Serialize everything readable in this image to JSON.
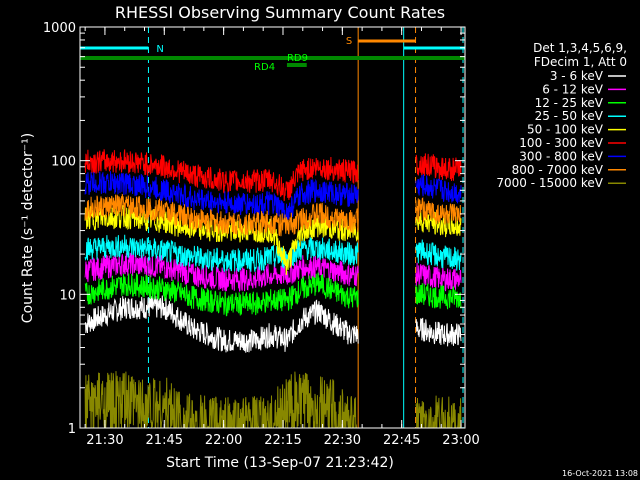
{
  "chart_data": {
    "type": "line",
    "title": "RHESSI Observing Summary Count Rates",
    "xlabel": "Start Time (13-Sep-07 21:23:42)",
    "ylabel": "Count Rate (s⁻¹ detector⁻¹)",
    "y_scale": "log",
    "ylim": [
      1,
      1000
    ],
    "xlim": [
      "21:23:42",
      "23:01:00"
    ],
    "x_ticks": [
      "21:30",
      "21:45",
      "22:00",
      "22:15",
      "22:30",
      "22:45",
      "23:00"
    ],
    "y_ticks": [
      "1",
      "10",
      "100",
      "1000"
    ],
    "footer_date": "16-Oct-2021 13:08",
    "legend": {
      "header": [
        "Det 1,3,4,5,6,9,",
        "FDecim 1, Att 0"
      ],
      "position": "right"
    },
    "series": [
      {
        "name": "3 - 6 keV",
        "color": "#ffffff",
        "x": [
          "21:25",
          "21:35",
          "21:45",
          "21:52",
          "22:00",
          "22:08",
          "22:12",
          "22:16",
          "22:20",
          "22:24",
          "22:28",
          "22:32",
          "22:50",
          "22:55",
          "23:00"
        ],
        "y": [
          6,
          8,
          8,
          5.5,
          4.5,
          4.5,
          5,
          4.5,
          6.5,
          7.5,
          6,
          5,
          5.5,
          5,
          5
        ]
      },
      {
        "name": "6 - 12 keV",
        "color": "#ff00ff",
        "x": [
          "21:25",
          "21:35",
          "21:45",
          "21:52",
          "22:00",
          "22:08",
          "22:12",
          "22:16",
          "22:20",
          "22:24",
          "22:28",
          "22:32",
          "22:50",
          "22:55",
          "23:00"
        ],
        "y": [
          15,
          17,
          16,
          14,
          13,
          13,
          14,
          14,
          16,
          16,
          15,
          14,
          14,
          13,
          13
        ]
      },
      {
        "name": "12 - 25 keV",
        "color": "#00ff00",
        "x": [
          "21:25",
          "21:35",
          "21:45",
          "21:52",
          "22:00",
          "22:08",
          "22:12",
          "22:16",
          "22:20",
          "22:24",
          "22:28",
          "22:32",
          "22:50",
          "22:55",
          "23:00"
        ],
        "y": [
          10,
          12,
          11,
          9.5,
          8.5,
          8.5,
          9,
          9,
          11,
          12,
          10.5,
          9.5,
          10,
          9.5,
          9.5
        ]
      },
      {
        "name": "25 - 50 keV",
        "color": "#00ffff",
        "x": [
          "21:25",
          "21:35",
          "21:45",
          "21:52",
          "22:00",
          "22:08",
          "22:12",
          "22:16",
          "22:20",
          "22:24",
          "22:28",
          "22:32",
          "22:50",
          "22:55",
          "23:00"
        ],
        "y": [
          22,
          23,
          21,
          19,
          18,
          18,
          19,
          19,
          22,
          22,
          21,
          20,
          21,
          19,
          18
        ]
      },
      {
        "name": "50 - 100 keV",
        "color": "#ffff00",
        "x": [
          "21:25",
          "21:35",
          "21:45",
          "21:52",
          "22:00",
          "22:08",
          "22:12",
          "22:16",
          "22:20",
          "22:24",
          "22:28",
          "22:32",
          "22:50",
          "22:55",
          "23:00"
        ],
        "y": [
          37,
          38,
          35,
          31,
          30,
          30,
          30,
          16,
          30,
          33,
          31,
          30,
          36,
          33,
          32
        ]
      },
      {
        "name": "100 - 300 keV",
        "color": "#ff0000",
        "x": [
          "21:25",
          "21:35",
          "21:45",
          "21:52",
          "22:00",
          "22:08",
          "22:12",
          "22:16",
          "22:20",
          "22:24",
          "22:28",
          "22:32",
          "22:50",
          "22:55",
          "23:00"
        ],
        "y": [
          98,
          100,
          90,
          78,
          70,
          70,
          72,
          58,
          85,
          90,
          86,
          82,
          95,
          88,
          85
        ]
      },
      {
        "name": "300 - 800 keV",
        "color": "#0000ff",
        "x": [
          "21:25",
          "21:35",
          "21:45",
          "21:52",
          "22:00",
          "22:08",
          "22:12",
          "22:16",
          "22:20",
          "22:24",
          "22:28",
          "22:32",
          "22:50",
          "22:55",
          "23:00"
        ],
        "y": [
          68,
          68,
          60,
          52,
          48,
          47,
          48,
          40,
          57,
          60,
          57,
          55,
          65,
          60,
          57
        ]
      },
      {
        "name": "800 - 7000 keV",
        "color": "#ff8800",
        "x": [
          "21:25",
          "21:35",
          "21:45",
          "21:52",
          "22:00",
          "22:08",
          "22:12",
          "22:16",
          "22:20",
          "22:24",
          "22:28",
          "22:32",
          "22:50",
          "22:55",
          "23:00"
        ],
        "y": [
          44,
          46,
          42,
          37,
          34,
          34,
          35,
          32,
          37,
          40,
          37,
          35,
          43,
          40,
          38
        ]
      },
      {
        "name": "7000 - 15000 keV",
        "color": "#888800",
        "x": [
          "21:25",
          "21:35",
          "21:45",
          "21:52",
          "22:00",
          "22:08",
          "22:12",
          "22:16",
          "22:20",
          "22:24",
          "22:28",
          "22:32",
          "22:50",
          "22:55",
          "23:00"
        ],
        "y": [
          1.5,
          1.5,
          1.4,
          1,
          1,
          1,
          1,
          1.5,
          1.5,
          1.4,
          1.3,
          1,
          1,
          1,
          1
        ]
      }
    ],
    "flag_bars": [
      {
        "label": "N",
        "color": "#00ffff",
        "segments": [
          [
            "21:23:42",
            "21:41:00"
          ],
          [
            "22:45:30",
            "23:01:00"
          ]
        ]
      },
      {
        "label": "RD9",
        "color": "#008800",
        "segments": [
          [
            "21:23:42",
            "23:01:00"
          ]
        ]
      },
      {
        "label": "RD4",
        "color": "#008800",
        "segments": [
          [
            "22:16:00",
            "22:21:00"
          ]
        ]
      },
      {
        "label": "S",
        "color": "#ff8800",
        "segments": [
          [
            "22:34:00",
            "22:48:30"
          ]
        ]
      }
    ]
  }
}
